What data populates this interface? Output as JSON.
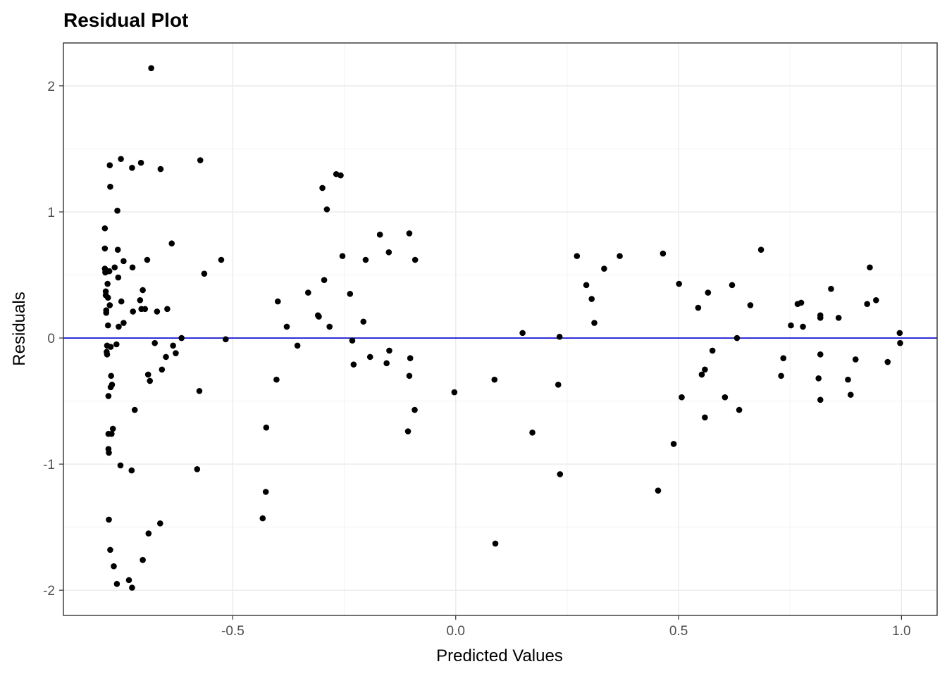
{
  "chart_data": {
    "type": "scatter",
    "title": "Residual Plot",
    "xlabel": "Predicted Values",
    "ylabel": "Residuals",
    "xlim": [
      -0.88,
      1.08
    ],
    "ylim": [
      -2.2,
      2.34
    ],
    "x_ticks": [
      -0.5,
      0.0,
      0.5,
      1.0
    ],
    "x_tick_labels": [
      "-0.5",
      "0.0",
      "0.5",
      "1.0"
    ],
    "y_ticks": [
      -2,
      -1,
      0,
      1,
      2
    ],
    "y_tick_labels": [
      "-2",
      "-1",
      "0",
      "1",
      "2"
    ],
    "grid": true,
    "reference_line": {
      "y": 0,
      "color": "#0000cc"
    },
    "point_color": "#000000",
    "points": [
      [
        -0.787,
        0.87
      ],
      [
        -0.787,
        0.71
      ],
      [
        -0.787,
        0.55
      ],
      [
        -0.786,
        0.52
      ],
      [
        -0.786,
        0.54
      ],
      [
        -0.785,
        0.37
      ],
      [
        -0.785,
        0.34
      ],
      [
        -0.784,
        0.2
      ],
      [
        -0.784,
        0.22
      ],
      [
        -0.783,
        -0.11
      ],
      [
        -0.782,
        -0.06
      ],
      [
        -0.782,
        -0.13
      ],
      [
        -0.781,
        0.43
      ],
      [
        -0.781,
        0.53
      ],
      [
        -0.78,
        0.32
      ],
      [
        -0.78,
        0.1
      ],
      [
        -0.779,
        -0.46
      ],
      [
        -0.779,
        -0.76
      ],
      [
        -0.779,
        -0.88
      ],
      [
        -0.778,
        -0.91
      ],
      [
        -0.778,
        -1.44
      ],
      [
        -0.777,
        0.53
      ],
      [
        -0.776,
        0.26
      ],
      [
        -0.776,
        1.37
      ],
      [
        -0.775,
        1.2
      ],
      [
        -0.775,
        -1.68
      ],
      [
        -0.774,
        -0.39
      ],
      [
        -0.774,
        -0.07
      ],
      [
        -0.773,
        -0.3
      ],
      [
        -0.772,
        -0.76
      ],
      [
        -0.771,
        -0.37
      ],
      [
        -0.769,
        -0.72
      ],
      [
        -0.767,
        -1.81
      ],
      [
        -0.765,
        0.56
      ],
      [
        -0.761,
        -0.05
      ],
      [
        -0.76,
        -1.95
      ],
      [
        -0.759,
        1.01
      ],
      [
        -0.758,
        0.7
      ],
      [
        -0.757,
        0.48
      ],
      [
        -0.756,
        0.09
      ],
      [
        -0.752,
        -1.01
      ],
      [
        -0.751,
        1.42
      ],
      [
        -0.75,
        0.29
      ],
      [
        -0.745,
        0.61
      ],
      [
        -0.745,
        0.12
      ],
      [
        -0.733,
        -1.92
      ],
      [
        -0.727,
        -1.05
      ],
      [
        -0.726,
        1.35
      ],
      [
        -0.726,
        -1.98
      ],
      [
        -0.725,
        0.56
      ],
      [
        -0.724,
        0.21
      ],
      [
        -0.72,
        -0.57
      ],
      [
        -0.708,
        0.3
      ],
      [
        -0.706,
        1.39
      ],
      [
        -0.705,
        0.23
      ],
      [
        -0.702,
        0.38
      ],
      [
        -0.702,
        -1.76
      ],
      [
        -0.697,
        0.23
      ],
      [
        -0.692,
        0.62
      ],
      [
        -0.69,
        -0.29
      ],
      [
        -0.689,
        -1.55
      ],
      [
        -0.686,
        -0.34
      ],
      [
        -0.683,
        2.14
      ],
      [
        -0.675,
        -0.04
      ],
      [
        -0.67,
        0.21
      ],
      [
        -0.663,
        -1.47
      ],
      [
        -0.662,
        1.34
      ],
      [
        -0.659,
        -0.25
      ],
      [
        -0.65,
        -0.15
      ],
      [
        -0.647,
        0.23
      ],
      [
        -0.637,
        0.75
      ],
      [
        -0.634,
        -0.06
      ],
      [
        -0.628,
        -0.12
      ],
      [
        -0.615,
        0.0
      ],
      [
        -0.58,
        -1.04
      ],
      [
        -0.575,
        -0.42
      ],
      [
        -0.573,
        1.41
      ],
      [
        -0.564,
        0.51
      ],
      [
        -0.526,
        0.62
      ],
      [
        -0.516,
        -0.01
      ],
      [
        -0.433,
        -1.43
      ],
      [
        -0.426,
        -1.22
      ],
      [
        -0.425,
        -0.71
      ],
      [
        -0.402,
        -0.33
      ],
      [
        -0.399,
        0.29
      ],
      [
        -0.379,
        0.09
      ],
      [
        -0.355,
        -0.06
      ],
      [
        -0.331,
        0.36
      ],
      [
        -0.309,
        0.18
      ],
      [
        -0.307,
        0.17
      ],
      [
        -0.299,
        1.19
      ],
      [
        -0.295,
        0.46
      ],
      [
        -0.289,
        1.02
      ],
      [
        -0.283,
        0.09
      ],
      [
        -0.268,
        1.3
      ],
      [
        -0.258,
        1.29
      ],
      [
        -0.254,
        0.65
      ],
      [
        -0.237,
        0.35
      ],
      [
        -0.232,
        -0.02
      ],
      [
        -0.229,
        -0.21
      ],
      [
        -0.207,
        0.13
      ],
      [
        -0.202,
        0.62
      ],
      [
        -0.192,
        -0.15
      ],
      [
        -0.17,
        0.82
      ],
      [
        -0.155,
        -0.2
      ],
      [
        -0.15,
        0.68
      ],
      [
        -0.149,
        -0.1
      ],
      [
        -0.107,
        -0.74
      ],
      [
        -0.104,
        0.83
      ],
      [
        -0.104,
        -0.3
      ],
      [
        -0.102,
        -0.16
      ],
      [
        -0.092,
        -0.57
      ],
      [
        -0.091,
        0.62
      ],
      [
        -0.003,
        -0.43
      ],
      [
        0.087,
        -0.33
      ],
      [
        0.089,
        -1.63
      ],
      [
        0.15,
        0.04
      ],
      [
        0.172,
        -0.75
      ],
      [
        0.23,
        -0.37
      ],
      [
        0.233,
        0.01
      ],
      [
        0.234,
        -1.08
      ],
      [
        0.272,
        0.65
      ],
      [
        0.293,
        0.42
      ],
      [
        0.305,
        0.31
      ],
      [
        0.311,
        0.12
      ],
      [
        0.333,
        0.55
      ],
      [
        0.368,
        0.65
      ],
      [
        0.454,
        -1.21
      ],
      [
        0.465,
        0.67
      ],
      [
        0.489,
        -0.84
      ],
      [
        0.501,
        0.43
      ],
      [
        0.507,
        -0.47
      ],
      [
        0.544,
        0.24
      ],
      [
        0.552,
        -0.29
      ],
      [
        0.559,
        -0.63
      ],
      [
        0.559,
        -0.25
      ],
      [
        0.566,
        0.36
      ],
      [
        0.576,
        -0.1
      ],
      [
        0.604,
        -0.47
      ],
      [
        0.62,
        0.42
      ],
      [
        0.631,
        0.0
      ],
      [
        0.636,
        -0.57
      ],
      [
        0.661,
        0.26
      ],
      [
        0.685,
        0.7
      ],
      [
        0.73,
        -0.3
      ],
      [
        0.735,
        -0.16
      ],
      [
        0.752,
        0.1
      ],
      [
        0.767,
        0.27
      ],
      [
        0.775,
        0.28
      ],
      [
        0.779,
        0.09
      ],
      [
        0.814,
        -0.32
      ],
      [
        0.818,
        -0.13
      ],
      [
        0.818,
        0.18
      ],
      [
        0.818,
        0.16
      ],
      [
        0.818,
        -0.49
      ],
      [
        0.842,
        0.39
      ],
      [
        0.859,
        0.16
      ],
      [
        0.88,
        -0.33
      ],
      [
        0.886,
        -0.45
      ],
      [
        0.897,
        -0.17
      ],
      [
        0.923,
        0.27
      ],
      [
        0.929,
        0.56
      ],
      [
        0.943,
        0.3
      ],
      [
        0.969,
        -0.19
      ],
      [
        0.996,
        0.04
      ],
      [
        0.997,
        -0.04
      ]
    ]
  }
}
